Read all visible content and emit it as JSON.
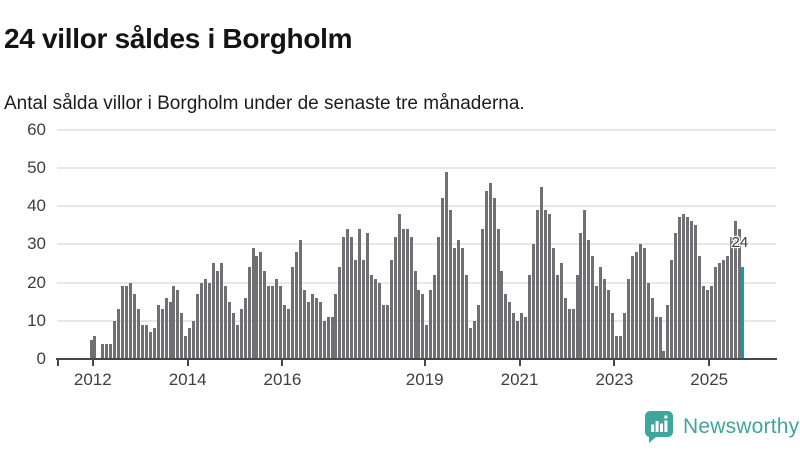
{
  "title": "24 villor såldes i Borgholm",
  "subtitle": "Antal sålda villor i Borgholm under de senaste tre månaderna.",
  "annotation": {
    "label": "24"
  },
  "logo": {
    "text": "Newsworthy",
    "icon": "newsworthy-speech-bubble-bar-chart-icon"
  },
  "colors": {
    "bar": "#6f6f74",
    "highlight": "#0aa0a6",
    "grid": "#e8e8e8",
    "axis": "#474747",
    "title_text": "#141414",
    "axis_text": "#3f3f3f",
    "logo_teal": "#3ea69b"
  },
  "chart_data": {
    "type": "bar",
    "title": "24 villor såldes i Borgholm",
    "subtitle": "Antal sålda villor i Borgholm under de senaste tre månaderna.",
    "unit": "villor (rullande 3 månader)",
    "frequency": "monthly",
    "start_month": "2011-12",
    "end_month": "2025-09",
    "grid": "horizontal",
    "legend": "none",
    "ylim": [
      0,
      60
    ],
    "yticks": [
      0,
      10,
      20,
      30,
      40,
      50,
      60
    ],
    "xtick_labels": [
      "2012",
      "2014",
      "2016",
      "2019",
      "2021",
      "2023",
      "2025"
    ],
    "highlighted_bar": {
      "month": "2025-09",
      "value": 24,
      "label": "24"
    },
    "values": [
      5,
      6,
      0,
      4,
      4,
      4,
      10,
      13,
      19,
      19,
      20,
      17,
      13,
      9,
      9,
      7,
      8,
      14,
      13,
      16,
      15,
      19,
      18,
      12,
      6,
      8,
      10,
      17,
      20,
      21,
      20,
      25,
      23,
      25,
      19,
      15,
      12,
      9,
      13,
      16,
      24,
      29,
      27,
      28,
      23,
      19,
      19,
      21,
      19,
      14,
      13,
      24,
      28,
      31,
      18,
      15,
      17,
      16,
      15,
      10,
      11,
      11,
      17,
      24,
      32,
      34,
      32,
      26,
      34,
      26,
      33,
      22,
      21,
      20,
      14,
      14,
      26,
      32,
      38,
      34,
      34,
      32,
      23,
      18,
      17,
      9,
      18,
      22,
      32,
      42,
      49,
      39,
      29,
      31,
      29,
      22,
      8,
      10,
      14,
      34,
      44,
      46,
      42,
      34,
      23,
      17,
      15,
      12,
      10,
      12,
      11,
      22,
      30,
      39,
      45,
      39,
      38,
      29,
      22,
      25,
      16,
      13,
      13,
      22,
      33,
      39,
      31,
      27,
      19,
      24,
      21,
      18,
      12,
      6,
      6,
      12,
      21,
      27,
      28,
      30,
      29,
      20,
      16,
      11,
      11,
      2,
      14,
      26,
      33,
      37,
      38,
      37,
      36,
      35,
      27,
      19,
      18,
      19,
      24,
      25,
      26,
      27,
      32,
      36,
      34,
      24
    ]
  }
}
